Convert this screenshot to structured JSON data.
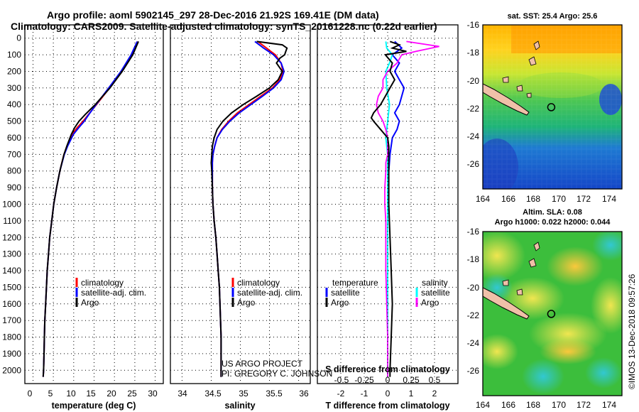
{
  "title_line1": "Argo profile: aoml 5902145_297 28-Dec-2016 21.92S 169.41E (DM data)",
  "title_line2": "Climatology: CARS2009. Satellite-adjusted climatology: synTS_20161228.nc (0.22d earlier)",
  "credit_line1": "US ARGO PROJECT",
  "credit_line2": "PI: GREGORY C. JOHNSON",
  "imos_stamp": "©IMOS 13-Dec-2018 09:57:26",
  "colors": {
    "climatology": "#ff0000",
    "satellite": "#0000ff",
    "argo": "#000000",
    "sat_salinity": "#00ffff",
    "argo_salinity": "#ff00ff"
  },
  "chart_data": [
    {
      "type": "line",
      "id": "temperature-profile",
      "xlabel": "temperature (deg C)",
      "ylabel": "",
      "xlim": [
        -2,
        32
      ],
      "ylim": [
        2080,
        0
      ],
      "xticks": [
        "0",
        "5",
        "10",
        "15",
        "20",
        "25",
        "30"
      ],
      "yticks": [
        "0",
        "100",
        "200",
        "300",
        "400",
        "500",
        "600",
        "700",
        "800",
        "900",
        "1000",
        "1100",
        "1200",
        "1300",
        "1400",
        "1500",
        "1600",
        "1700",
        "1800",
        "1900",
        "2000"
      ],
      "legend": [
        "climatology",
        "satellite-adj. clim.",
        "Argo"
      ],
      "series": [
        {
          "name": "climatology",
          "pressure": [
            20,
            100,
            200,
            300,
            400,
            460,
            500,
            540,
            580,
            650,
            700,
            800,
            900,
            1000,
            1100,
            1200,
            1300,
            1400,
            1500,
            1600,
            1700,
            1800,
            1900,
            2000,
            2040
          ],
          "values": [
            25.8,
            24.3,
            21.8,
            18.8,
            15.6,
            13.6,
            12.3,
            10.8,
            9.6,
            8.4,
            7.6,
            6.6,
            5.8,
            5.1,
            4.6,
            4.1,
            3.8,
            3.5,
            3.3,
            3.1,
            2.9,
            2.8,
            2.7,
            2.6,
            2.5
          ]
        },
        {
          "name": "satellite-adj. clim.",
          "pressure": [
            20,
            100,
            200,
            300,
            400,
            460,
            500,
            540,
            580,
            650,
            700,
            800,
            900,
            1000,
            1100,
            1200,
            1300,
            1400,
            1500,
            1600,
            1700,
            1800,
            1900,
            2000,
            2040
          ],
          "values": [
            25.6,
            24.1,
            21.6,
            18.6,
            15.5,
            13.7,
            12.6,
            11.2,
            9.9,
            8.5,
            7.7,
            6.6,
            5.8,
            5.1,
            4.6,
            4.1,
            3.8,
            3.5,
            3.3,
            3.1,
            2.9,
            2.8,
            2.7,
            2.6,
            2.5
          ]
        },
        {
          "name": "Argo",
          "pressure": [
            20,
            100,
            200,
            300,
            400,
            460,
            500,
            540,
            580,
            650,
            700,
            800,
            900,
            1000,
            1100,
            1200,
            1300,
            1400,
            1500,
            1600,
            1700,
            1800,
            1900,
            2000,
            2040
          ],
          "values": [
            25.9,
            24.5,
            21.9,
            18.9,
            15.3,
            12.8,
            11.3,
            10.2,
            9.4,
            8.3,
            7.6,
            6.6,
            5.8,
            5.1,
            4.6,
            4.1,
            3.8,
            3.5,
            3.3,
            3.1,
            2.9,
            2.8,
            2.7,
            2.6,
            2.5
          ]
        }
      ]
    },
    {
      "type": "line",
      "id": "salinity-profile",
      "xlabel": "salinity",
      "xlim": [
        33.8,
        36.2
      ],
      "ylim": [
        2080,
        0
      ],
      "xticks": [
        "34",
        "34.5",
        "35",
        "35.5",
        "36"
      ],
      "legend": [
        "climatology",
        "satellite-adj. clim.",
        "Argo"
      ],
      "series": [
        {
          "name": "climatology",
          "pressure": [
            20,
            60,
            100,
            150,
            200,
            250,
            300,
            350,
            400,
            450,
            500,
            550,
            600,
            650,
            700,
            750,
            800,
            900,
            1000,
            1100,
            1200,
            1300,
            1400,
            1500,
            1600,
            1700,
            1800,
            1900,
            2000,
            2040
          ],
          "values": [
            35.3,
            35.45,
            35.6,
            35.7,
            35.73,
            35.68,
            35.55,
            35.35,
            35.15,
            34.95,
            34.8,
            34.68,
            34.6,
            34.56,
            34.53,
            34.52,
            34.52,
            34.52,
            34.53,
            34.55,
            34.58,
            34.6,
            34.62,
            34.64,
            34.65,
            34.66,
            34.67,
            34.67,
            34.67,
            34.67
          ]
        },
        {
          "name": "satellite-adj. clim.",
          "pressure": [
            20,
            60,
            100,
            150,
            200,
            250,
            300,
            350,
            400,
            450,
            500,
            550,
            600,
            650,
            700,
            750,
            800,
            900,
            1000,
            1100,
            1200,
            1300,
            1400,
            1500,
            1600,
            1700,
            1800,
            1900,
            2000,
            2040
          ],
          "values": [
            35.25,
            35.4,
            35.57,
            35.7,
            35.75,
            35.7,
            35.57,
            35.38,
            35.18,
            34.98,
            34.82,
            34.69,
            34.6,
            34.56,
            34.53,
            34.52,
            34.52,
            34.52,
            34.53,
            34.55,
            34.58,
            34.6,
            34.62,
            34.64,
            34.65,
            34.66,
            34.67,
            34.67,
            34.67,
            34.67
          ]
        },
        {
          "name": "Argo",
          "pressure": [
            20,
            40,
            60,
            80,
            100,
            120,
            150,
            200,
            250,
            300,
            350,
            400,
            450,
            500,
            550,
            600,
            650,
            700,
            750,
            800,
            900,
            1000,
            1100,
            1200,
            1300,
            1400,
            1500,
            1600,
            1700,
            1800,
            1900,
            2000,
            2040
          ],
          "values": [
            35.28,
            35.72,
            35.8,
            35.78,
            35.76,
            35.68,
            35.62,
            35.72,
            35.65,
            35.5,
            35.28,
            35.05,
            34.85,
            34.7,
            34.6,
            34.55,
            34.52,
            34.51,
            34.5,
            34.51,
            34.52,
            34.53,
            34.55,
            34.58,
            34.6,
            34.62,
            34.64,
            34.65,
            34.66,
            34.67,
            34.67,
            34.67,
            34.67
          ]
        }
      ]
    },
    {
      "type": "line",
      "id": "difference-profile",
      "xlabel": "T difference from climatology",
      "top_label": "S difference from climatology",
      "xlim": [
        -3,
        3
      ],
      "ylim": [
        2080,
        0
      ],
      "xticks": [
        "-2",
        "-1",
        "0",
        "1",
        "2"
      ],
      "top_ticks": [
        "-0.5",
        "-0.25",
        "0",
        "0.25",
        "0.5"
      ],
      "legend_left_title": "temperature",
      "legend_right_title": "salinity",
      "legend": [
        "satellite",
        "Argo"
      ],
      "series": [
        {
          "name": "T satellite",
          "pressure": [
            20,
            60,
            100,
            150,
            200,
            250,
            300,
            350,
            400,
            450,
            500,
            550,
            600,
            700,
            800,
            900,
            1000,
            1200,
            1500,
            1800,
            2040
          ],
          "values": [
            0.3,
            0.6,
            0.2,
            0.5,
            0.3,
            0.5,
            0.7,
            0.6,
            0.5,
            0.3,
            0.5,
            0.4,
            0.2,
            0.1,
            0.05,
            0.02,
            0,
            0,
            0,
            0,
            0
          ]
        },
        {
          "name": "T Argo",
          "pressure": [
            20,
            40,
            60,
            80,
            100,
            150,
            200,
            250,
            300,
            350,
            400,
            450,
            480,
            500,
            550,
            600,
            650,
            700,
            800,
            900,
            1000,
            1200,
            1400,
            1600,
            1800,
            2000,
            2040
          ],
          "values": [
            0.1,
            0.5,
            0.2,
            0.8,
            -0.1,
            0.2,
            0.1,
            0.3,
            0.1,
            -0.1,
            -0.3,
            -0.6,
            -0.7,
            -0.6,
            -0.3,
            0,
            0.05,
            0.05,
            0.05,
            0.05,
            0.05,
            0.1,
            0.15,
            0.2,
            0.15,
            0.1,
            0.1
          ]
        },
        {
          "name": "S satellite",
          "pressure": [
            20,
            60,
            100,
            150,
            200,
            300,
            400,
            500,
            600,
            700,
            800,
            900,
            1000,
            1200,
            1500,
            1800,
            2040
          ],
          "values": [
            -0.02,
            -0.01,
            0.05,
            0.02,
            -0.02,
            -0.01,
            0.02,
            0,
            -0.02,
            0,
            0,
            0,
            0,
            0,
            0,
            0,
            0
          ]
        },
        {
          "name": "S Argo",
          "pressure": [
            20,
            50,
            80,
            100,
            150,
            200,
            250,
            300,
            350,
            400,
            450,
            500,
            550,
            600,
            650,
            700,
            750,
            800,
            900,
            1000,
            1100,
            1200,
            1400,
            1600,
            1800,
            2000,
            2040
          ],
          "values": [
            0.2,
            0.55,
            0.3,
            0.15,
            0.1,
            0,
            -0.05,
            -0.05,
            -0.1,
            -0.12,
            -0.1,
            -0.05,
            -0.02,
            0,
            0,
            0,
            -0.02,
            -0.02,
            -0.03,
            -0.03,
            -0.02,
            -0.02,
            -0.02,
            -0.01,
            0,
            0,
            0
          ]
        }
      ]
    },
    {
      "type": "heatmap",
      "id": "sst-map",
      "title": "sat. SST: 25.4 Argo: 25.6",
      "xlim": [
        164,
        175
      ],
      "ylim": [
        -27.8,
        -16
      ],
      "xticks": [
        "164",
        "166",
        "168",
        "170",
        "172",
        "174"
      ],
      "yticks": [
        "-16",
        "-18",
        "-20",
        "-22",
        "-24",
        "-26"
      ],
      "argo_position": {
        "lon": 169.41,
        "lat": -21.92
      }
    },
    {
      "type": "heatmap",
      "id": "sla-map",
      "title": "Altim. SLA: 0.08",
      "subtitle": "Argo h1000: 0.022 h2000: 0.044",
      "xlim": [
        164,
        175
      ],
      "ylim": [
        -27.8,
        -16
      ],
      "xticks": [
        "164",
        "166",
        "168",
        "170",
        "172",
        "174"
      ],
      "yticks": [
        "-16",
        "-18",
        "-20",
        "-22",
        "-24",
        "-26"
      ],
      "argo_position": {
        "lon": 169.41,
        "lat": -21.92
      }
    }
  ]
}
